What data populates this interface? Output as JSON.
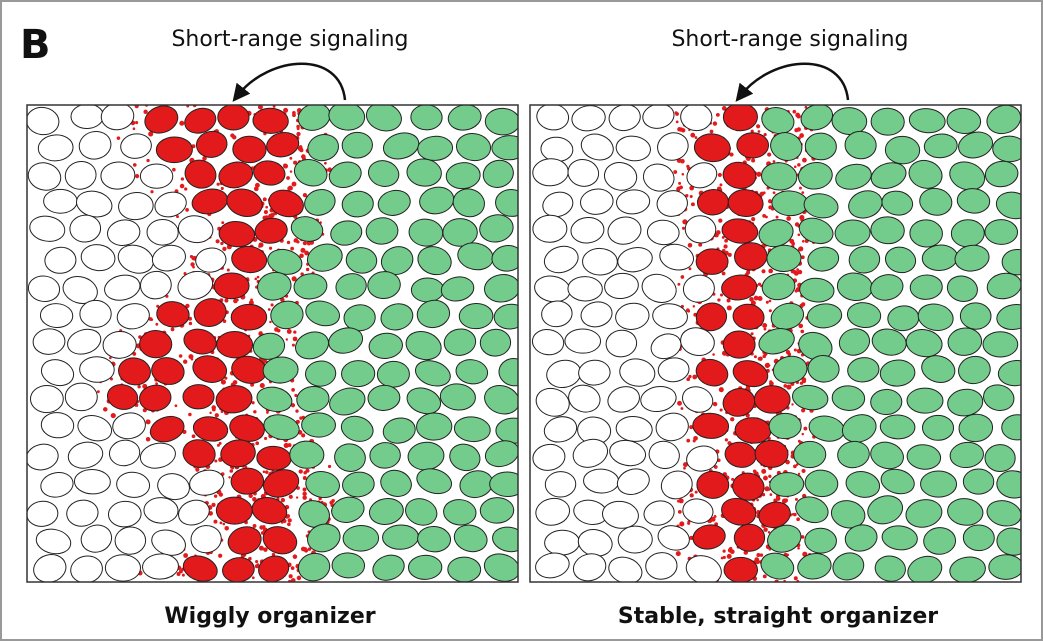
{
  "panel_label": "B",
  "panels": [
    {
      "signal_label": "Short-range signaling",
      "caption": "Wiggly organizer"
    },
    {
      "signal_label": "Short-range signaling",
      "caption": "Stable, straight organizer"
    }
  ]
}
